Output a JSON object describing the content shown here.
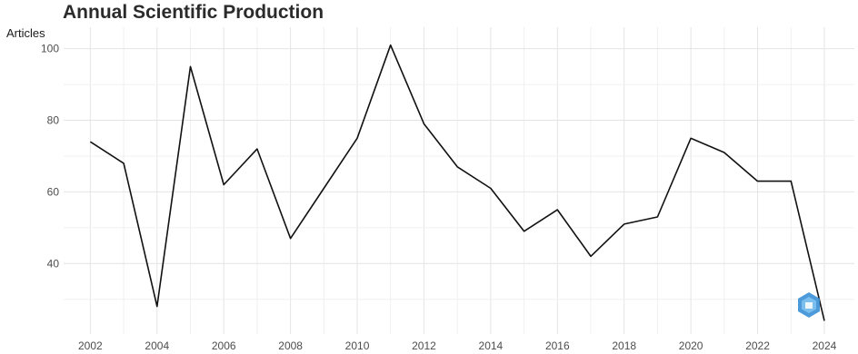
{
  "chart_data": {
    "type": "line",
    "title": "Annual Scientific Production",
    "xlabel": "",
    "ylabel": "Articles",
    "x": [
      2002,
      2003,
      2004,
      2005,
      2006,
      2007,
      2008,
      2009,
      2010,
      2011,
      2012,
      2013,
      2014,
      2015,
      2016,
      2017,
      2018,
      2019,
      2020,
      2021,
      2022,
      2023,
      2024
    ],
    "series": [
      {
        "values": [
          74,
          68,
          28,
          95,
          62,
          72,
          47,
          61,
          75,
          101,
          79,
          67,
          61,
          49,
          55,
          42,
          51,
          53,
          75,
          71,
          63,
          63,
          24
        ]
      }
    ],
    "xticks": [
      "2002",
      "2004",
      "2006",
      "2008",
      "2010",
      "2012",
      "2014",
      "2016",
      "2018",
      "2020",
      "2022",
      "2024"
    ],
    "yticks": [
      "40",
      "60",
      "80",
      "100"
    ],
    "xlim": [
      2001.2,
      2024.9
    ],
    "ylim": [
      20.3,
      106
    ],
    "grid": true,
    "line_color": "#111111",
    "grid_color": "#e4e4e4"
  }
}
